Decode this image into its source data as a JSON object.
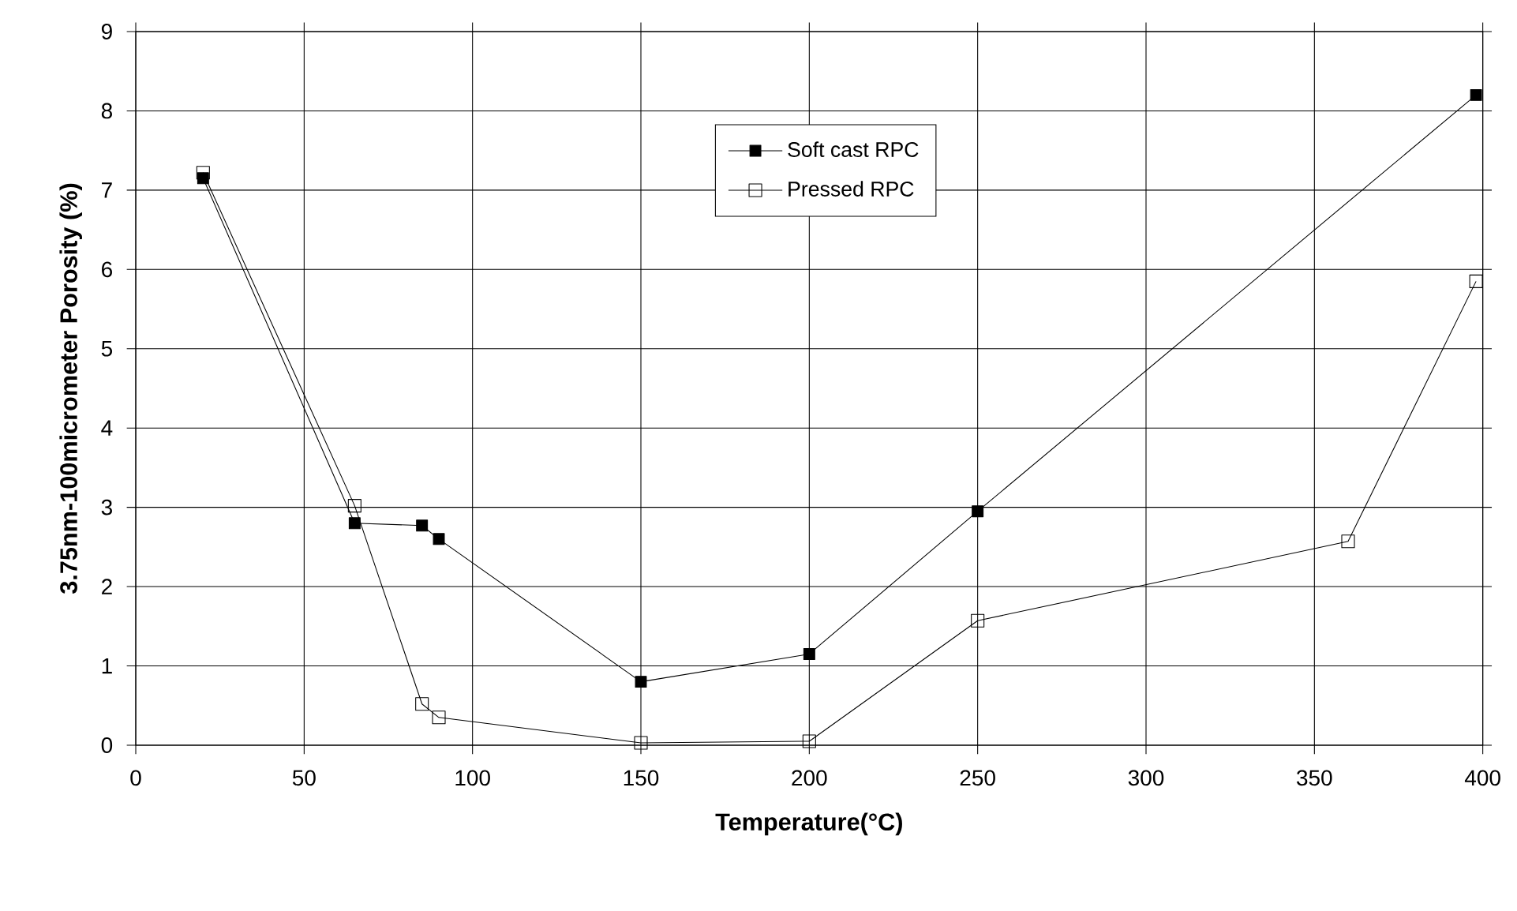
{
  "chart_data": {
    "type": "line",
    "xlabel": "Temperature(°C)",
    "ylabel": "3.75nm-100micrometer Porosity (%)",
    "xlim": [
      0,
      400
    ],
    "xticks": [
      0,
      50,
      100,
      150,
      200,
      250,
      300,
      350,
      400
    ],
    "ylim": [
      0,
      9
    ],
    "yticks": [
      0,
      1,
      2,
      3,
      4,
      5,
      6,
      7,
      8,
      9
    ],
    "grid": true,
    "legend": "top",
    "marker": "square",
    "line_style": "solid",
    "series": [
      {
        "name": "Soft cast RPC",
        "color": "#000000",
        "x": [
          20,
          65,
          85,
          90,
          150,
          200,
          250,
          398
        ],
        "values": [
          7.15,
          2.8,
          2.77,
          2.6,
          0.8,
          1.15,
          2.95,
          8.2
        ]
      },
      {
        "name": "Pressed RPC",
        "color": "#000000",
        "x": [
          20,
          65,
          85,
          90,
          150,
          200,
          250,
          360,
          398
        ],
        "values": [
          7.22,
          3.02,
          0.52,
          0.35,
          0.03,
          0.05,
          1.57,
          2.57,
          5.85
        ]
      }
    ]
  }
}
